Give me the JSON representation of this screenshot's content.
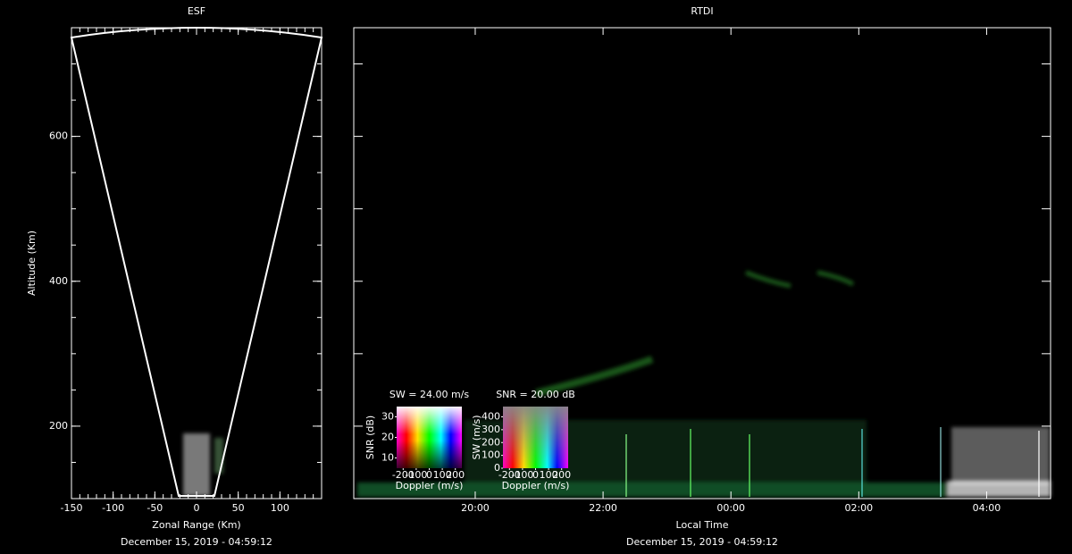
{
  "chart_data": [
    {
      "type": "image",
      "title": "ESF",
      "xlabel": "Zonal Range (Km)",
      "ylabel": "Altitude (Km)",
      "footer": "December 15, 2019 - 04:59:12",
      "xlim": [
        -150,
        150
      ],
      "xticks": [
        -150,
        -100,
        -50,
        0,
        50,
        100
      ],
      "xminor": 10,
      "ylim": [
        100,
        750
      ],
      "yticks": [
        200,
        400,
        600
      ],
      "yminor": 50
    },
    {
      "type": "image",
      "title": "RTDI",
      "xlabel": "Local Time",
      "footer": "December 15, 2019 - 04:59:12",
      "xlim": [
        18.1,
        29.0
      ],
      "xticks": [
        {
          "value": 20,
          "label": "20:00"
        },
        {
          "value": 22,
          "label": "22:00"
        },
        {
          "value": 24,
          "label": "00:00"
        },
        {
          "value": 26,
          "label": "02:00"
        },
        {
          "value": 28,
          "label": "04:00"
        }
      ],
      "ylim": [
        100,
        750
      ],
      "yticks": [
        200,
        300,
        400,
        500,
        600,
        700
      ],
      "ytick_labels": false,
      "insets": [
        {
          "title": "SW = 24.00 m/s",
          "xlabel": "Doppler (m/s)",
          "ylabel": "SNR (dB)",
          "xlim": [
            -250,
            250
          ],
          "xticks": [
            -200,
            -100,
            0,
            100,
            200
          ],
          "ylim": [
            5,
            35
          ],
          "yticks": [
            10,
            20,
            30
          ],
          "shade": "brightness"
        },
        {
          "title": "SNR = 20.00 dB",
          "xlabel": "Doppler (m/s)",
          "ylabel": "SW (m/s)",
          "xlim": [
            -250,
            250
          ],
          "xticks": [
            -200,
            -100,
            0,
            100,
            200
          ],
          "ylim": [
            0,
            480
          ],
          "yticks": [
            0,
            100,
            200,
            300,
            400
          ],
          "shade": "saturation"
        }
      ]
    }
  ]
}
